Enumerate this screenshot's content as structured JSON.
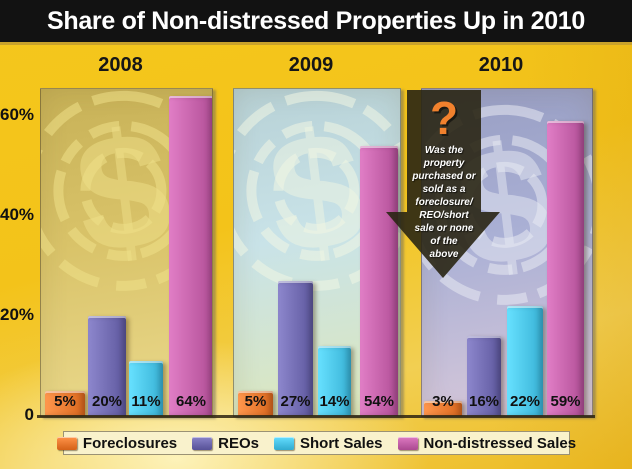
{
  "title": "Share of Non-distressed Properties Up in 2010",
  "colors": {
    "background_gold": "#F3C31A",
    "title_bar_bg": "#121212",
    "title_text": "#FFFFFF",
    "gold_rule": "#C9A22B",
    "axis_line": "#2E2410",
    "label_text": "#111111",
    "legend_box_bg": "#F9F2CC",
    "legend_box_border": "#9B9274",
    "callout_bg": "#2A2614",
    "callout_question": "#F1812D",
    "callout_text": "#FFFFFF"
  },
  "chart_data": {
    "type": "bar",
    "title": "Share of Non-distressed Properties Up in 2010",
    "categories": [
      "2008",
      "2009",
      "2010"
    ],
    "series": [
      {
        "name": "Foreclosures",
        "color": "#E8752B",
        "values": [
          5,
          5,
          3
        ]
      },
      {
        "name": "REOs",
        "color": "#6B65AB",
        "values": [
          20,
          27,
          16
        ]
      },
      {
        "name": "Short Sales",
        "color": "#45BFE3",
        "values": [
          11,
          14,
          22
        ]
      },
      {
        "name": "Non-distressed Sales",
        "color": "#BF5CA4",
        "values": [
          64,
          54,
          59
        ]
      }
    ],
    "value_labels": [
      [
        "5%",
        "20%",
        "11%",
        "64%"
      ],
      [
        "5%",
        "27%",
        "14%",
        "54%"
      ],
      [
        "3%",
        "16%",
        "22%",
        "59%"
      ]
    ],
    "xlabel": "",
    "ylabel": "",
    "ylim": [
      0,
      68
    ],
    "yticks": [
      {
        "label": "60%",
        "value": 60
      },
      {
        "label": "40%",
        "value": 40
      },
      {
        "label": "20%",
        "value": 20
      },
      {
        "label": "0",
        "value": 0
      }
    ],
    "grid": false,
    "legend_position": "bottom",
    "panel_styles": [
      {
        "year": "2008",
        "tint_top": "#C7B157",
        "tint_bottom": "#EBDA8E",
        "watermark": "#EFE089"
      },
      {
        "year": "2009",
        "tint_top": "#B7D1D6",
        "tint_bottom": "#DDE7BA",
        "watermark": "#F0F6E3"
      },
      {
        "year": "2010",
        "tint_top": "#989EC3",
        "tint_bottom": "#D9C9DA",
        "watermark": "#E7EAF3"
      }
    ]
  },
  "callout": {
    "icon": "?",
    "lines": [
      "Was the",
      "property",
      "purchased or",
      "sold as a",
      "foreclosure/",
      "REO/short",
      "sale or none",
      "of the",
      "above"
    ]
  },
  "legend": {
    "items": [
      {
        "label": "Foreclosures",
        "color": "#E8752B"
      },
      {
        "label": "REOs",
        "color": "#6B65AB"
      },
      {
        "label": "Short Sales",
        "color": "#45BFE3"
      },
      {
        "label": "Non-distressed Sales",
        "color": "#BF5CA4"
      }
    ]
  }
}
